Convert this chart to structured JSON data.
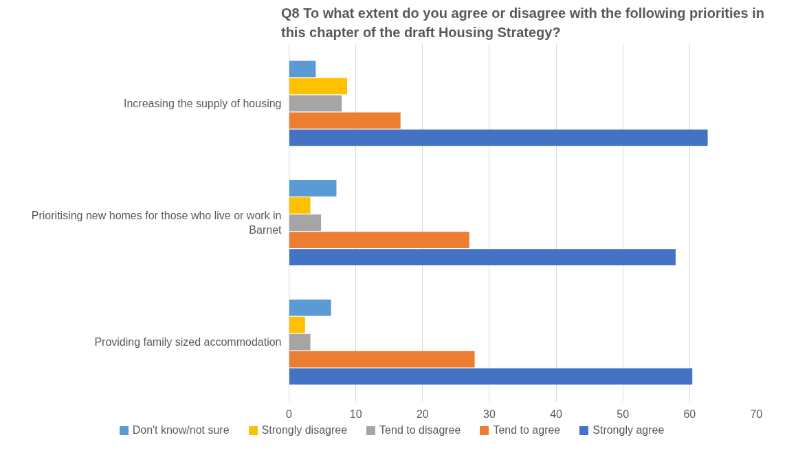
{
  "chart_data": {
    "type": "bar",
    "orientation": "horizontal",
    "title": "Q8 To what extent do you agree or disagree with the following priorities in this chapter of the draft Housing Strategy?",
    "categories": [
      "Increasing the supply of housing",
      "Prioritising new homes for those who live or work in Barnet",
      "Providing family sized accommodation"
    ],
    "series": [
      {
        "name": "Don't know/not sure",
        "color": "#5b9bd5",
        "values": [
          4.0,
          7.1,
          6.3
        ]
      },
      {
        "name": "Strongly disagree",
        "color": "#ffc000",
        "values": [
          8.7,
          3.2,
          2.4
        ]
      },
      {
        "name": "Tend to disagree",
        "color": "#a5a5a5",
        "values": [
          7.9,
          4.8,
          3.2
        ]
      },
      {
        "name": "Tend to agree",
        "color": "#ed7d31",
        "values": [
          16.7,
          27.0,
          27.8
        ]
      },
      {
        "name": "Strongly agree",
        "color": "#4472c4",
        "values": [
          62.7,
          57.9,
          60.4
        ]
      }
    ],
    "xlim": [
      0,
      70
    ],
    "xticks": [
      0,
      10,
      20,
      30,
      40,
      50,
      60,
      70
    ],
    "grid": "x",
    "legend": "bottom"
  }
}
